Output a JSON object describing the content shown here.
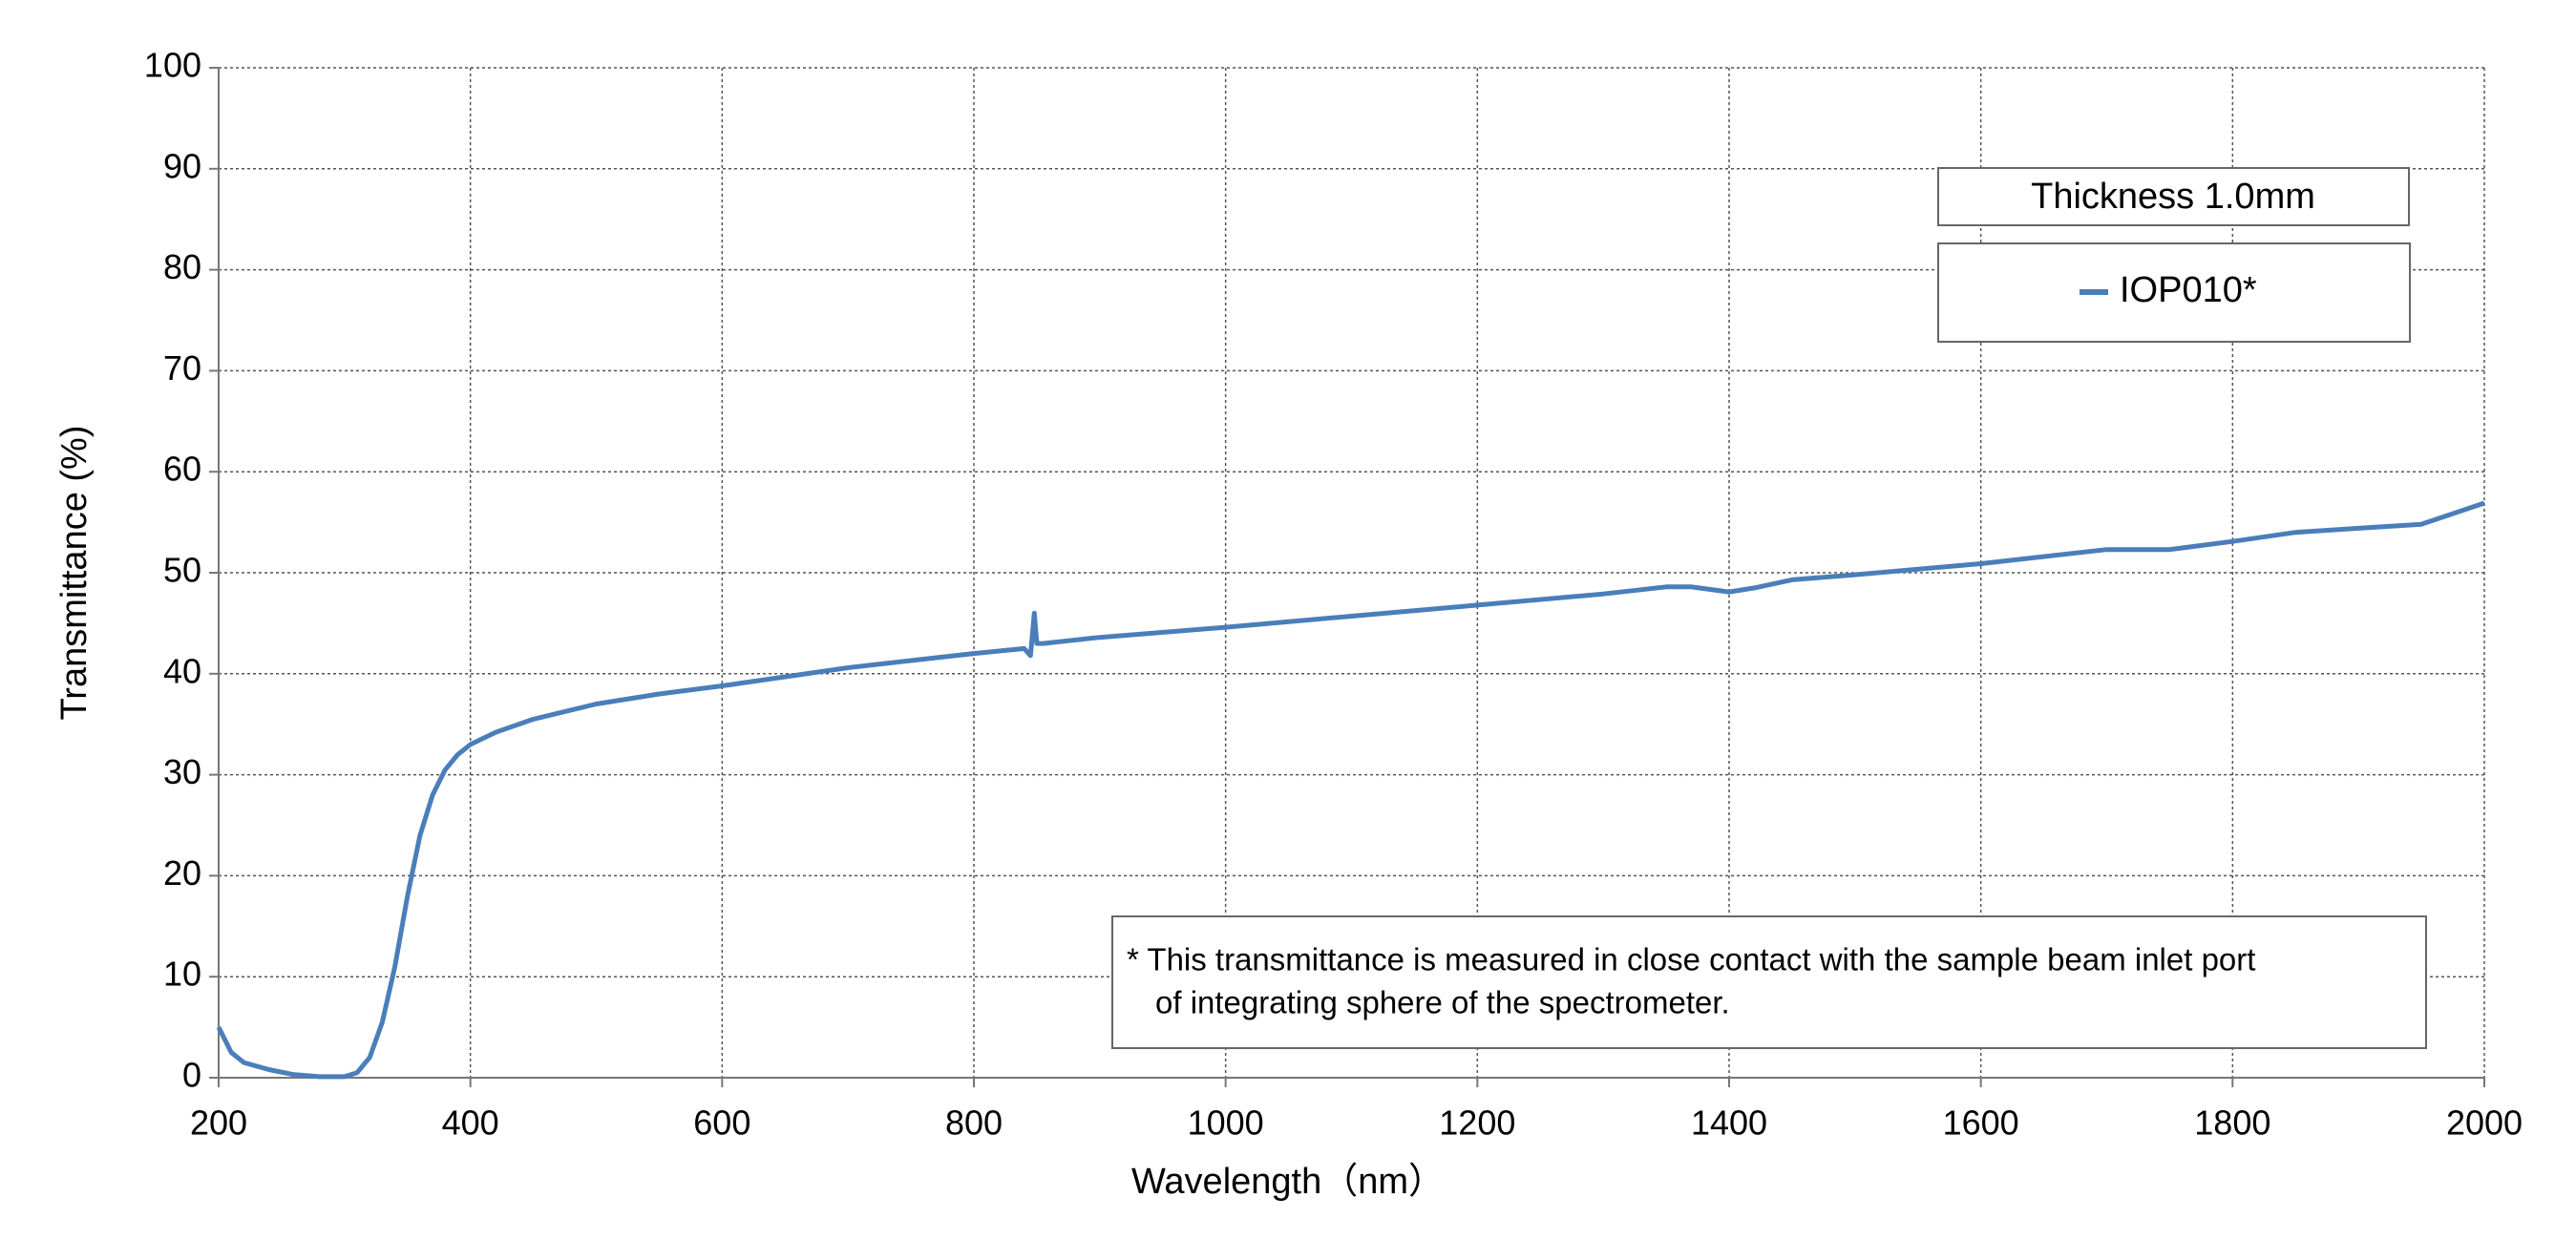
{
  "chart_data": {
    "type": "line",
    "xlabel": "Wavelength（nm）",
    "ylabel": "Transmittance (%)",
    "legend_title": "Thickness  1.0mm",
    "annotation": [
      "* This transmittance is measured in close contact with the sample beam inlet port",
      "of integrating sphere of the spectrometer."
    ],
    "x": [
      200,
      210,
      220,
      240,
      260,
      280,
      300,
      310,
      320,
      330,
      340,
      350,
      360,
      370,
      380,
      390,
      400,
      420,
      450,
      500,
      550,
      600,
      650,
      700,
      750,
      800,
      840,
      845,
      848,
      850,
      855,
      900,
      1000,
      1100,
      1200,
      1300,
      1350,
      1370,
      1400,
      1420,
      1450,
      1500,
      1600,
      1700,
      1750,
      1800,
      1850,
      1900,
      1950,
      2000
    ],
    "series": [
      {
        "name": "IOP010*",
        "color": "#4a7ebb",
        "values": [
          5,
          2.5,
          1.5,
          0.8,
          0.3,
          0.1,
          0.1,
          0.5,
          2,
          5.5,
          11,
          18,
          24,
          28,
          30.5,
          32,
          33,
          34.2,
          35.5,
          37,
          38,
          38.8,
          39.7,
          40.6,
          41.3,
          42,
          42.5,
          41.8,
          46,
          43,
          43,
          43.6,
          44.6,
          45.7,
          46.8,
          47.9,
          48.6,
          48.6,
          48.1,
          48.5,
          49.3,
          49.8,
          50.9,
          52.3,
          52.3,
          53.1,
          54,
          54.4,
          54.8,
          56.9
        ]
      }
    ],
    "xlim": [
      200,
      2000
    ],
    "xticks": [
      200,
      400,
      600,
      800,
      1000,
      1200,
      1400,
      1600,
      1800,
      2000
    ],
    "ylim": [
      0,
      100
    ],
    "yticks": [
      0,
      10,
      20,
      30,
      40,
      50,
      60,
      70,
      80,
      90,
      100
    ],
    "grid": true
  }
}
